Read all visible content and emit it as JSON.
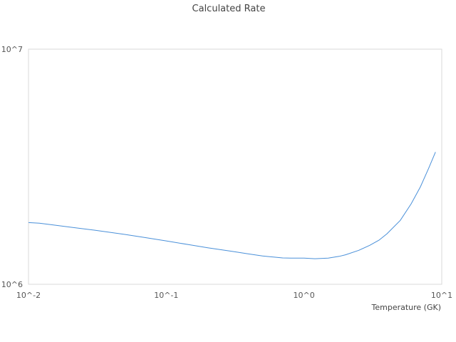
{
  "chart_data": {
    "type": "line",
    "title": "Calculated Rate",
    "xlabel": "Temperature (GK)",
    "ylabel": "",
    "x_scale": "log",
    "y_scale": "log",
    "xlim": [
      0.01,
      10
    ],
    "ylim": [
      1000000,
      10000000
    ],
    "x_tick_labels": [
      "10^-2",
      "10^-1",
      "10^0",
      "10^1"
    ],
    "y_tick_labels": [
      "10^7",
      "10^6"
    ],
    "grid": false,
    "legend": "none",
    "colors": {
      "series": "#4a90d9",
      "frame": "#d9d9d9"
    },
    "series": [
      {
        "x": [
          0.01,
          0.012,
          0.015,
          0.02,
          0.03,
          0.04,
          0.05,
          0.07,
          0.1,
          0.15,
          0.2,
          0.3,
          0.4,
          0.5,
          0.6,
          0.7,
          0.8,
          1.0,
          1.2,
          1.5,
          1.8,
          2.0,
          2.5,
          3.0,
          3.5,
          4.0,
          5.0,
          6.0,
          7.0,
          8.0,
          9.0
        ],
        "y": [
          1830000,
          1820000,
          1790000,
          1750000,
          1700000,
          1660000,
          1630000,
          1580000,
          1530000,
          1470000,
          1430000,
          1380000,
          1345000,
          1320000,
          1305000,
          1295000,
          1292000,
          1292000,
          1285000,
          1293000,
          1315000,
          1335000,
          1395000,
          1465000,
          1540000,
          1640000,
          1870000,
          2200000,
          2600000,
          3100000,
          3650000
        ]
      }
    ]
  }
}
